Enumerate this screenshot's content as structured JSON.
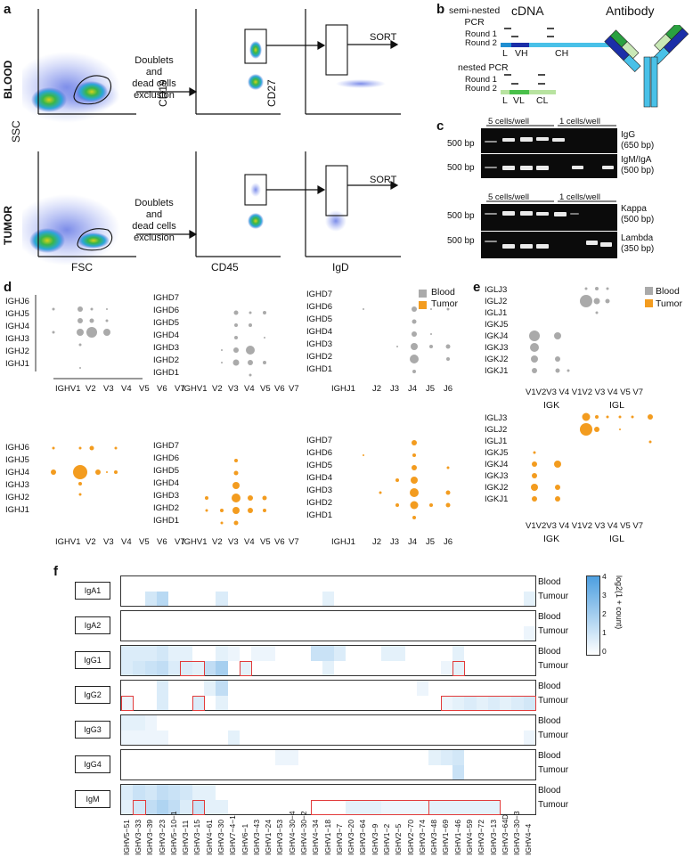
{
  "panel_a": {
    "letter": "a",
    "row_blood": "BLOOD",
    "row_tumor": "TUMOR",
    "ssc": "SSC",
    "fsc": "FSC",
    "cd19": "CD19",
    "cd45": "CD45",
    "cd27": "CD27",
    "igd": "IgD",
    "doublets_1": "Doublets",
    "doublets_2": "and",
    "doublets_3": "dead cells",
    "doublets_4": "exclusion",
    "sort": "SORT",
    "ssc_ticks": [
      "250K",
      "200K",
      "150K",
      "100K",
      "50K",
      "0"
    ],
    "fsc_ticks": [
      "0",
      "50K",
      "100K",
      "150K",
      "200K",
      "250K"
    ],
    "log_ticks_y": [
      "10⁵",
      "10⁴",
      "10³",
      "0",
      "-10³"
    ],
    "log_ticks_x": [
      "-10³",
      "0",
      "10³",
      "10⁴",
      "10⁵"
    ]
  },
  "panel_b": {
    "letter": "b",
    "semi_nested_1": "semi-nested",
    "semi_nested_2": "PCR",
    "nested": "nested PCR",
    "round1": "Round 1",
    "round2": "Round 2",
    "cdna": "cDNA",
    "antibody": "Antibody",
    "heavy_labels": [
      "L",
      "VH",
      "CH"
    ],
    "light_labels": [
      "L",
      "VL",
      "CL"
    ]
  },
  "panel_c": {
    "letter": "c",
    "five_cells": "5 cells/well",
    "one_cell": "1 cells/well",
    "bp500": "500 bp",
    "gels": [
      {
        "name": "IgG",
        "size": "(650 bp)"
      },
      {
        "name": "IgM/IgA",
        "size": "(500 bp)"
      },
      {
        "name": "Kappa",
        "size": "(500 bp)"
      },
      {
        "name": "Lambda",
        "size": "(350 bp)"
      }
    ]
  },
  "panel_d": {
    "letter": "d",
    "legend_blood": "Blood",
    "legend_tumor": "Tumor",
    "blood_color": "#aaaaaa",
    "tumor_color": "#f39c1f",
    "ighj_rows": [
      "IGHJ6",
      "IGHJ5",
      "IGHJ4",
      "IGHJ3",
      "IGHJ2",
      "IGHJ1"
    ],
    "ighd_rows": [
      "IGHD7",
      "IGHD6",
      "IGHD5",
      "IGHD4",
      "IGHD3",
      "IGHD2",
      "IGHD1"
    ],
    "ighv_cols": [
      "IGHV1",
      "V2",
      "V3",
      "V4",
      "V5",
      "V6",
      "V7"
    ],
    "ighj_cols": [
      "IGHJ1",
      "J2",
      "J3",
      "J4",
      "J5",
      "J6"
    ]
  },
  "panel_e": {
    "letter": "e",
    "legend_blood": "Blood",
    "legend_tumor": "Tumor",
    "rows": [
      "IGLJ3",
      "IGLJ2",
      "IGLJ1",
      "IGKJ5",
      "IGKJ4",
      "IGKJ3",
      "IGKJ2",
      "IGKJ1"
    ],
    "cols": [
      "V1",
      "V2",
      "V3",
      "V4",
      "V1",
      "V2",
      "V3",
      "V4",
      "V5",
      "V7"
    ],
    "igk": "IGK",
    "igl": "IGL"
  },
  "panel_f": {
    "letter": "f",
    "isotypes": [
      "IgA1",
      "IgA2",
      "IgG1",
      "IgG2",
      "IgG3",
      "IgG4",
      "IgM"
    ],
    "blood": "Blood",
    "tumour": "Tumour",
    "colorbar_title": "log2(1 + count)",
    "colorbar_ticks": [
      "4",
      "3",
      "2",
      "1",
      "0"
    ],
    "genes": [
      "IGHV5−51",
      "IGHV3−33",
      "IGHV3−39",
      "IGHV3−23",
      "IGHV5−10−1",
      "IGHV3−11",
      "IGHV3−15",
      "IGHV4−61",
      "IGHV3−30",
      "IGHV7−4−1",
      "IGHV6−1",
      "IGHV3−43",
      "IGHV1−24",
      "IGHV3−53",
      "IGHV4−30−4",
      "IGHV4−30−2",
      "IGHV4−34",
      "IGHV1−18",
      "IGHV3−7",
      "IGHV3−20",
      "IGHV3−64",
      "IGHV3−9",
      "IGHV1−2",
      "IGHV2−5",
      "IGHV2−70",
      "IGHV3−74",
      "IGHV3−48",
      "IGHV1−69",
      "IGHV1−46",
      "IGHV4−59",
      "IGHV3−72",
      "IGHV3−13",
      "IGHV3−64D",
      "IGHV3−30−3",
      "IGHV4−4"
    ]
  }
}
